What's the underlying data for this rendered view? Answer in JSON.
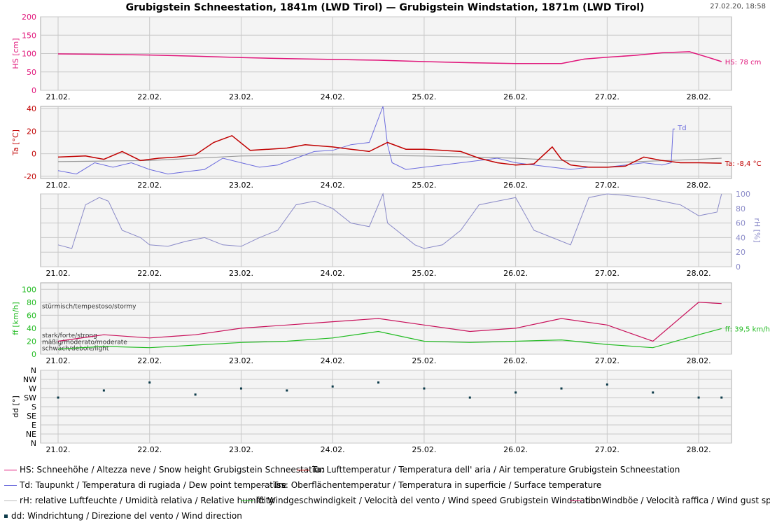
{
  "header": {
    "title": "Grubigstein Schneestation, 1841m (LWD Tirol) — Grubigstein Windstation, 1871m (LWD Tirol)",
    "timestamp": "27.02.20, 18:58"
  },
  "colors": {
    "hs": "#e0157a",
    "ta": "#c00000",
    "td": "#6b6bdd",
    "tss": "#999999",
    "rh": "#8a8ac8",
    "ff": "#22bb22",
    "bb": "#c8105a",
    "dd": "#0d3b4a",
    "grid": "#c8c8c8",
    "plot_bg": "#f4f4f4"
  },
  "x_ticks": [
    "21.02.",
    "22.02.",
    "23.02.",
    "24.02.",
    "25.02.",
    "26.02.",
    "27.02.",
    "28.02."
  ],
  "chart_data": [
    {
      "type": "line",
      "id": "hs",
      "ylabel": "HS [cm]",
      "ylim": [
        0,
        200
      ],
      "yticks": [
        "0",
        "50",
        "100",
        "150",
        "200"
      ],
      "annotation": "HS: 78 cm",
      "series": [
        {
          "name": "HS",
          "x": [
            0,
            0.5,
            1,
            1.5,
            2,
            2.5,
            3,
            3.5,
            4,
            4.5,
            5,
            5.25,
            5.5,
            5.75,
            6,
            6.3,
            6.6,
            6.9,
            7.1,
            7.25
          ],
          "y": [
            99,
            98,
            96,
            93,
            89,
            86,
            84,
            82,
            78,
            75,
            73,
            73,
            73,
            85,
            90,
            95,
            102,
            105,
            90,
            78
          ]
        }
      ]
    },
    {
      "type": "line",
      "id": "ta",
      "ylabel": "Ta [°C]",
      "ylim": [
        -22,
        42
      ],
      "yticks": [
        "-20",
        "0",
        "20",
        "40"
      ],
      "annotation": "Ta: -8,4 °C",
      "td_label": "Td",
      "series": [
        {
          "name": "Ta",
          "x": [
            0,
            0.3,
            0.5,
            0.7,
            0.9,
            1.1,
            1.3,
            1.5,
            1.7,
            1.9,
            2.1,
            2.3,
            2.5,
            2.7,
            3,
            3.2,
            3.4,
            3.6,
            3.8,
            4,
            4.2,
            4.4,
            4.6,
            4.8,
            5,
            5.2,
            5.4,
            5.5,
            5.6,
            5.8,
            6,
            6.2,
            6.4,
            6.6,
            6.8,
            7,
            7.25
          ],
          "y": [
            -3,
            -2,
            -5,
            2,
            -6,
            -4,
            -3,
            -1,
            10,
            16,
            3,
            4,
            5,
            8,
            6,
            4,
            2,
            10,
            4,
            4,
            3,
            2,
            -4,
            -8,
            -10,
            -9,
            6,
            -5,
            -10,
            -12,
            -12,
            -11,
            -3,
            -6,
            -8,
            -8,
            -8.4
          ]
        },
        {
          "name": "Td",
          "x": [
            0,
            0.2,
            0.4,
            0.6,
            0.8,
            1,
            1.2,
            1.4,
            1.6,
            1.8,
            2,
            2.2,
            2.4,
            2.6,
            2.8,
            3,
            3.2,
            3.4,
            3.55,
            3.6,
            3.65,
            3.8,
            4,
            4.2,
            4.4,
            4.6,
            4.8,
            5,
            5.2,
            5.4,
            5.6,
            5.8,
            6,
            6.2,
            6.4,
            6.6,
            6.7,
            6.72,
            6.74
          ],
          "y": [
            -15,
            -18,
            -8,
            -12,
            -8,
            -14,
            -18,
            -16,
            -14,
            -4,
            -8,
            -12,
            -10,
            -4,
            2,
            3,
            8,
            10,
            42,
            8,
            -8,
            -14,
            -12,
            -10,
            -8,
            -6,
            -4,
            -8,
            -10,
            -12,
            -14,
            -12,
            -12,
            -10,
            -8,
            -10,
            -8,
            22,
            22
          ]
        },
        {
          "name": "Tss",
          "x": [
            0,
            1,
            2,
            3,
            4,
            5,
            6,
            7,
            7.25
          ],
          "y": [
            -7,
            -6,
            -2,
            -1,
            -2,
            -4,
            -8,
            -5,
            -4
          ]
        }
      ]
    },
    {
      "type": "line",
      "id": "rh",
      "ylabel": "rH [%]",
      "ylim": [
        0,
        100
      ],
      "yticks": [
        "0",
        "20",
        "40",
        "60",
        "80",
        "100"
      ],
      "series": [
        {
          "name": "rH",
          "x": [
            0,
            0.15,
            0.3,
            0.45,
            0.55,
            0.7,
            0.9,
            1,
            1.2,
            1.4,
            1.6,
            1.8,
            2,
            2.2,
            2.4,
            2.6,
            2.8,
            3,
            3.2,
            3.4,
            3.55,
            3.6,
            3.75,
            3.9,
            4,
            4.2,
            4.4,
            4.6,
            4.8,
            5,
            5.2,
            5.4,
            5.6,
            5.8,
            6,
            6.2,
            6.4,
            6.6,
            6.8,
            7,
            7.2,
            7.25
          ],
          "y": [
            30,
            25,
            85,
            95,
            90,
            50,
            40,
            30,
            28,
            35,
            40,
            30,
            28,
            40,
            50,
            85,
            90,
            80,
            60,
            55,
            100,
            60,
            45,
            30,
            25,
            30,
            50,
            85,
            90,
            95,
            50,
            40,
            30,
            95,
            100,
            98,
            95,
            90,
            85,
            70,
            75,
            100
          ]
        }
      ]
    },
    {
      "type": "line",
      "id": "ff",
      "ylabel": "ff [km/h]",
      "ylim": [
        0,
        110
      ],
      "yticks": [
        "0",
        "20",
        "40",
        "60",
        "80",
        "100"
      ],
      "annotation": "ff: 39,5 km/h",
      "threshold_labels": [
        "stürmisch/tempestoso/stormy",
        "stark/forte/strong",
        "mäßig/moderato/moderate",
        "schwach/debole/light"
      ],
      "series": [
        {
          "name": "ff",
          "x": [
            0,
            0.5,
            1,
            1.5,
            2,
            2.5,
            3,
            3.5,
            4,
            4.5,
            5,
            5.5,
            6,
            6.5,
            7,
            7.25
          ],
          "y": [
            8,
            12,
            10,
            14,
            18,
            20,
            25,
            35,
            20,
            18,
            20,
            22,
            15,
            10,
            30,
            39.5
          ]
        },
        {
          "name": "bb",
          "x": [
            0,
            0.5,
            1,
            1.5,
            2,
            2.5,
            3,
            3.5,
            4,
            4.5,
            5,
            5.5,
            6,
            6.5,
            7,
            7.25
          ],
          "y": [
            20,
            30,
            25,
            30,
            40,
            45,
            50,
            55,
            45,
            35,
            40,
            55,
            45,
            20,
            80,
            78
          ]
        }
      ]
    },
    {
      "type": "scatter",
      "id": "dd",
      "ylabel": "dd [°]",
      "yticks": [
        "N",
        "NE",
        "E",
        "SE",
        "S",
        "SW",
        "W",
        "NW",
        "N"
      ],
      "series": [
        {
          "name": "dd",
          "x": [
            0,
            0.5,
            1,
            1.5,
            2,
            2.5,
            3,
            3.5,
            4,
            4.5,
            5,
            5.5,
            6,
            6.5,
            7,
            7.25
          ],
          "y": [
            225,
            260,
            300,
            240,
            270,
            260,
            280,
            300,
            270,
            225,
            250,
            270,
            290,
            250,
            225,
            225
          ]
        }
      ]
    }
  ],
  "legend": {
    "hs": "HS: Schneehöhe / Altezza neve / Snow height  Grubigstein Schneestation",
    "ta": "Ta: Lufttemperatur / Temperatura dell' aria / Air temperature  Grubigstein Schneestation",
    "td": "Td: Taupunkt / Temperatura di rugiada / Dew point temperature",
    "tss": "Tss: Oberflächentemperatur / Temperatura in superficie / Surface temperature",
    "rh": "rH: relative Luftfeuchte / Umidità relativa / Relative humidity",
    "ff": "ff: Windgeschwindigkeit / Velocità del vento / Wind speed  Grubigstein Windstation",
    "bb": "bb: Windböe / Velocità raffica / Wind gust speed",
    "dd": "dd: Windrichtung / Direzione del vento / Wind direction"
  }
}
